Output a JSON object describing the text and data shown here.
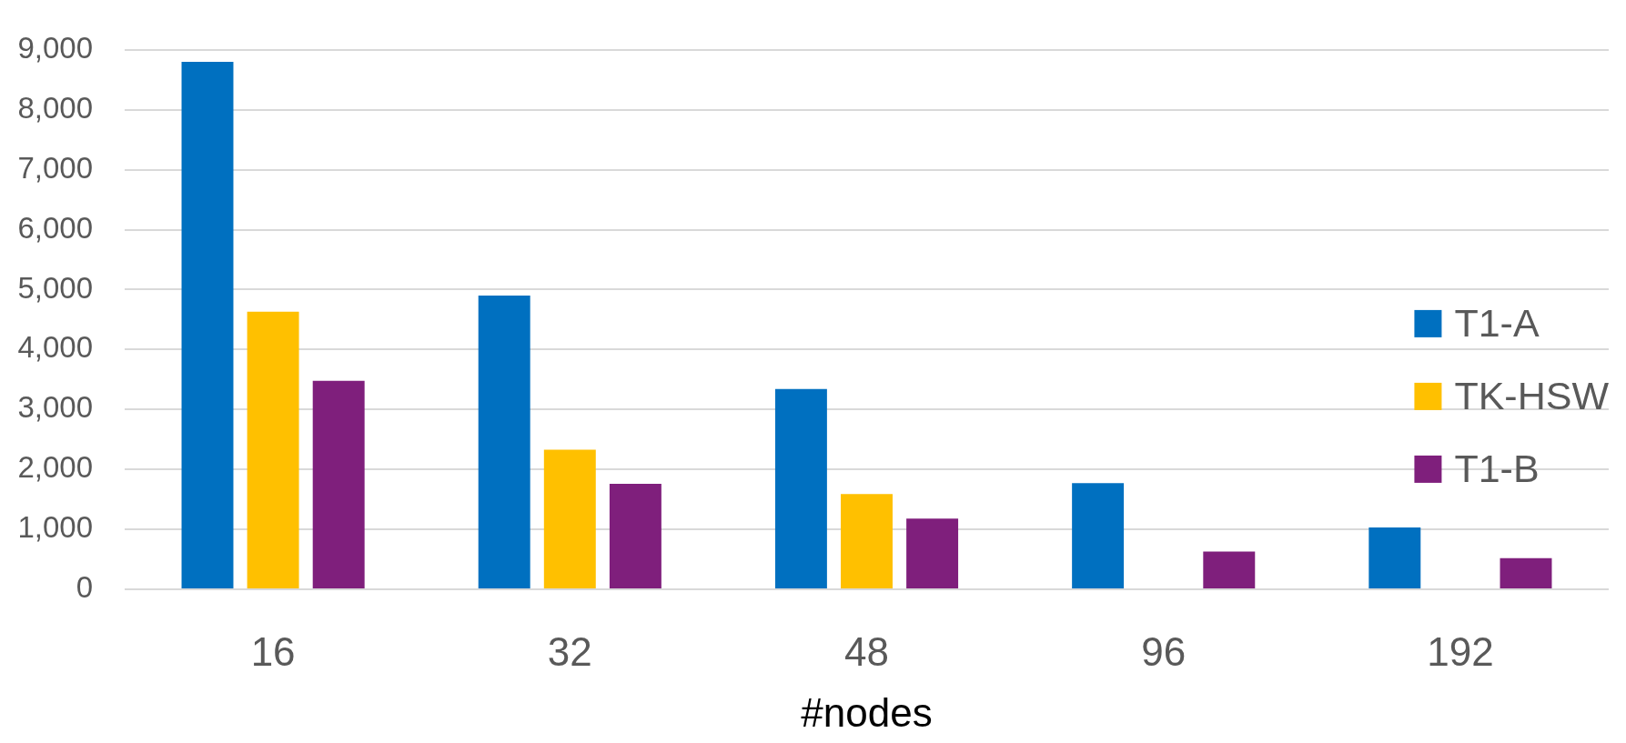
{
  "chart_data": {
    "type": "bar",
    "xlabel": "#nodes",
    "categories": [
      "16",
      "32",
      "48",
      "96",
      "192"
    ],
    "series": [
      {
        "name": "T1-A",
        "color": "#0070c0",
        "values": [
          8800,
          4900,
          3340,
          1770,
          1030
        ]
      },
      {
        "name": "TK-HSW",
        "color": "#ffc000",
        "values": [
          4630,
          2330,
          1590,
          null,
          null
        ]
      },
      {
        "name": "T1-B",
        "color": "#7f1f7c",
        "values": [
          3480,
          1760,
          1180,
          630,
          520
        ]
      }
    ],
    "ylim": [
      0,
      9000
    ],
    "yticks": [
      0,
      {
        "value": 1000,
        "label": "1,000"
      },
      {
        "value": 2000,
        "label": "2,000"
      },
      {
        "value": 3000,
        "label": "3,000"
      },
      {
        "value": 4000,
        "label": "4,000"
      },
      {
        "value": 5000,
        "label": "5,000"
      },
      {
        "value": 6000,
        "label": "6,000"
      },
      {
        "value": 7000,
        "label": "7,000"
      },
      {
        "value": 8000,
        "label": "8,000"
      },
      {
        "value": 9000,
        "label": "9,000"
      }
    ],
    "grid": "y",
    "legend": "right"
  }
}
